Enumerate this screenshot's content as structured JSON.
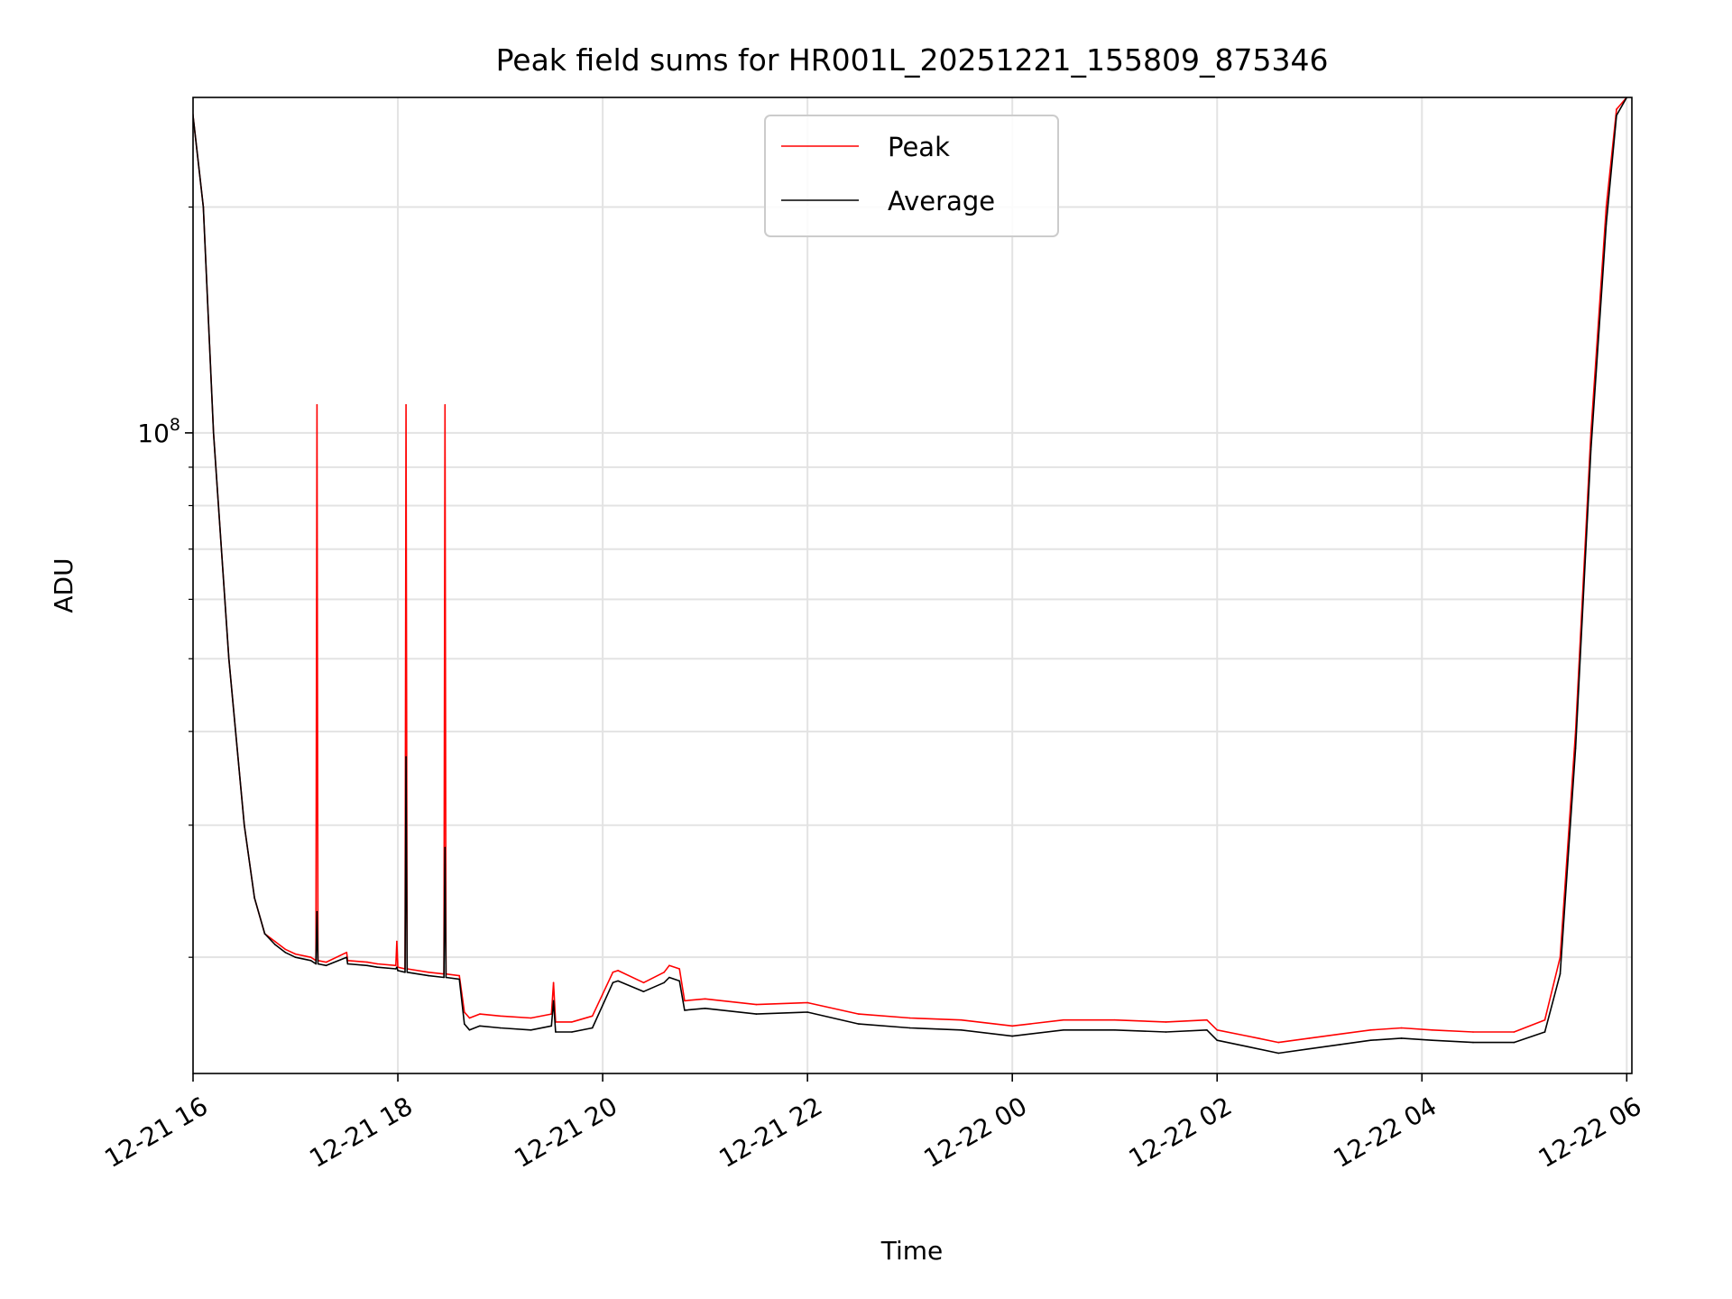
{
  "chart_data": {
    "type": "line",
    "title": "Peak field sums for HR001L_20251221_155809_875346",
    "xlabel": "Time",
    "ylabel": "ADU",
    "yscale": "log",
    "ylim": [
      14000000,
      280000000
    ],
    "x_unit": "hours since 2025-12-21 16:00",
    "xlim": [
      0,
      14.05
    ],
    "x_ticks": [
      {
        "value": 0,
        "label": "12-21 16"
      },
      {
        "value": 2,
        "label": "12-21 18"
      },
      {
        "value": 4,
        "label": "12-21 20"
      },
      {
        "value": 6,
        "label": "12-21 22"
      },
      {
        "value": 8,
        "label": "12-22 00"
      },
      {
        "value": 10,
        "label": "12-22 02"
      },
      {
        "value": 12,
        "label": "12-22 04"
      },
      {
        "value": 14,
        "label": "12-22 06"
      }
    ],
    "y_major_ticks": [
      {
        "value": 100000000,
        "label_base": "10",
        "label_exp": "8"
      }
    ],
    "y_minor_ticks": [
      20000000,
      30000000,
      40000000,
      50000000,
      60000000,
      70000000,
      80000000,
      90000000,
      200000000
    ],
    "grid": true,
    "legend_position": "top-center",
    "series": [
      {
        "name": "Peak",
        "color": "#ff0000",
        "x": [
          -0.02,
          0.1,
          0.2,
          0.35,
          0.5,
          0.6,
          0.7,
          0.8,
          0.9,
          1.0,
          1.15,
          1.2,
          1.21,
          1.22,
          1.3,
          1.5,
          1.51,
          1.7,
          1.8,
          1.98,
          1.99,
          2.0,
          2.07,
          2.08,
          2.09,
          2.3,
          2.45,
          2.46,
          2.47,
          2.6,
          2.65,
          2.7,
          2.8,
          3.0,
          3.3,
          3.5,
          3.52,
          3.54,
          3.7,
          3.9,
          4.1,
          4.15,
          4.4,
          4.6,
          4.65,
          4.75,
          4.8,
          5.0,
          5.5,
          6.0,
          6.5,
          7.0,
          7.5,
          8.0,
          8.5,
          9.0,
          9.5,
          9.9,
          10.0,
          10.3,
          10.6,
          10.9,
          11.2,
          11.5,
          11.8,
          12.1,
          12.5,
          12.9,
          13.2,
          13.35,
          13.5,
          13.65,
          13.8,
          13.9,
          14.0
        ],
        "values": [
          280000000,
          200000000,
          100000000,
          50000000,
          30000000,
          24000000,
          21500000,
          21000000,
          20500000,
          20200000,
          20000000,
          19800000,
          109000000,
          19800000,
          19700000,
          20300000,
          19800000,
          19700000,
          19600000,
          19500000,
          21000000,
          19400000,
          19300000,
          109000000,
          19300000,
          19100000,
          19000000,
          109000000,
          19000000,
          18900000,
          16900000,
          16600000,
          16800000,
          16700000,
          16600000,
          16800000,
          18500000,
          16400000,
          16400000,
          16700000,
          19100000,
          19200000,
          18500000,
          19100000,
          19500000,
          19300000,
          17500000,
          17600000,
          17300000,
          17400000,
          16800000,
          16600000,
          16500000,
          16200000,
          16500000,
          16500000,
          16400000,
          16500000,
          16000000,
          15700000,
          15400000,
          15600000,
          15800000,
          16000000,
          16100000,
          16000000,
          15900000,
          15900000,
          16500000,
          20000000,
          40000000,
          100000000,
          200000000,
          270000000,
          280000000
        ]
      },
      {
        "name": "Average",
        "color": "#000000",
        "x": [
          -0.02,
          0.1,
          0.2,
          0.35,
          0.5,
          0.6,
          0.7,
          0.8,
          0.9,
          1.0,
          1.15,
          1.2,
          1.21,
          1.22,
          1.3,
          1.5,
          1.51,
          1.7,
          1.8,
          1.98,
          1.99,
          2.0,
          2.07,
          2.08,
          2.09,
          2.3,
          2.45,
          2.46,
          2.47,
          2.6,
          2.65,
          2.7,
          2.8,
          3.0,
          3.3,
          3.5,
          3.52,
          3.54,
          3.7,
          3.9,
          4.1,
          4.15,
          4.4,
          4.6,
          4.65,
          4.75,
          4.8,
          5.0,
          5.5,
          6.0,
          6.5,
          7.0,
          7.5,
          8.0,
          8.5,
          9.0,
          9.5,
          9.9,
          10.0,
          10.3,
          10.6,
          10.9,
          11.2,
          11.5,
          11.8,
          12.1,
          12.5,
          12.9,
          13.2,
          13.35,
          13.5,
          13.65,
          13.8,
          13.9,
          14.0
        ],
        "values": [
          280000000,
          200000000,
          100000000,
          50000000,
          30000000,
          24000000,
          21500000,
          20800000,
          20300000,
          20000000,
          19800000,
          19600000,
          23000000,
          19600000,
          19500000,
          20000000,
          19600000,
          19500000,
          19400000,
          19300000,
          19400000,
          19200000,
          19100000,
          37000000,
          19100000,
          18900000,
          18800000,
          28000000,
          18800000,
          18700000,
          16300000,
          16000000,
          16200000,
          16100000,
          16000000,
          16200000,
          17500000,
          15900000,
          15900000,
          16100000,
          18500000,
          18600000,
          18000000,
          18500000,
          18800000,
          18600000,
          17000000,
          17100000,
          16800000,
          16900000,
          16300000,
          16100000,
          16000000,
          15700000,
          16000000,
          16000000,
          15900000,
          16000000,
          15500000,
          15200000,
          14900000,
          15100000,
          15300000,
          15500000,
          15600000,
          15500000,
          15400000,
          15400000,
          15900000,
          19000000,
          38000000,
          95000000,
          190000000,
          265000000,
          280000000
        ]
      }
    ]
  }
}
